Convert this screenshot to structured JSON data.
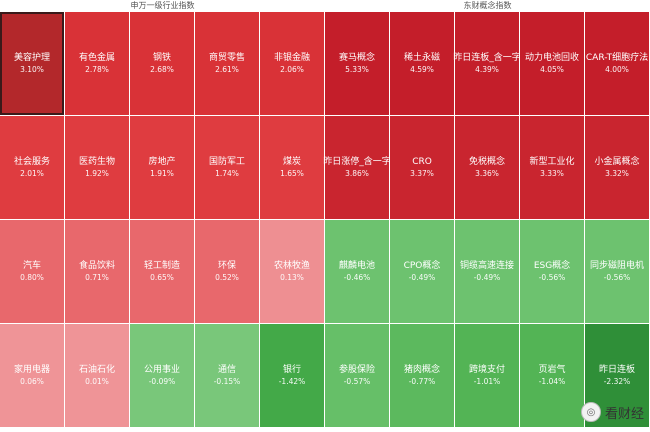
{
  "left": {
    "title": "申万一级行业指数",
    "cells": [
      {
        "name": "美容护理",
        "value": "3.10%",
        "color": "#b3282b"
      },
      {
        "name": "有色金属",
        "value": "2.78%",
        "color": "#d93237"
      },
      {
        "name": "钢铁",
        "value": "2.68%",
        "color": "#d93237"
      },
      {
        "name": "商贸零售",
        "value": "2.61%",
        "color": "#d93237"
      },
      {
        "name": "非银金融",
        "value": "2.06%",
        "color": "#d93237"
      },
      {
        "name": "社会服务",
        "value": "2.01%",
        "color": "#df3c40"
      },
      {
        "name": "医药生物",
        "value": "1.92%",
        "color": "#df3c40"
      },
      {
        "name": "房地产",
        "value": "1.91%",
        "color": "#df3c40"
      },
      {
        "name": "国防军工",
        "value": "1.74%",
        "color": "#df3c40"
      },
      {
        "name": "煤炭",
        "value": "1.65%",
        "color": "#df3c40"
      },
      {
        "name": "汽车",
        "value": "0.80%",
        "color": "#e8686c"
      },
      {
        "name": "食品饮料",
        "value": "0.71%",
        "color": "#e8686c"
      },
      {
        "name": "轻工制造",
        "value": "0.65%",
        "color": "#e8686c"
      },
      {
        "name": "环保",
        "value": "0.52%",
        "color": "#e8686c"
      },
      {
        "name": "农林牧渔",
        "value": "0.13%",
        "color": "#ee8f92"
      },
      {
        "name": "家用电器",
        "value": "0.06%",
        "color": "#ef9497"
      },
      {
        "name": "石油石化",
        "value": "0.01%",
        "color": "#ef9497"
      },
      {
        "name": "公用事业",
        "value": "-0.09%",
        "color": "#79c77a"
      },
      {
        "name": "通信",
        "value": "-0.15%",
        "color": "#79c77a"
      },
      {
        "name": "银行",
        "value": "-1.42%",
        "color": "#43a948"
      }
    ]
  },
  "right": {
    "title": "东财概念指数",
    "cells": [
      {
        "name": "赛马概念",
        "value": "5.33%",
        "color": "#c41e2a"
      },
      {
        "name": "稀土永磁",
        "value": "4.59%",
        "color": "#c41e2a"
      },
      {
        "name": "昨日连板_含一字",
        "value": "4.39%",
        "color": "#c41e2a"
      },
      {
        "name": "动力电池回收",
        "value": "4.05%",
        "color": "#c41e2a"
      },
      {
        "name": "CAR-T细胞疗法",
        "value": "4.00%",
        "color": "#c41e2a"
      },
      {
        "name": "昨日涨停_含一字",
        "value": "3.86%",
        "color": "#c9252f"
      },
      {
        "name": "CRO",
        "value": "3.37%",
        "color": "#c9252f"
      },
      {
        "name": "免税概念",
        "value": "3.36%",
        "color": "#c9252f"
      },
      {
        "name": "新型工业化",
        "value": "3.33%",
        "color": "#c9252f"
      },
      {
        "name": "小金属概念",
        "value": "3.32%",
        "color": "#c9252f"
      },
      {
        "name": "麒麟电池",
        "value": "-0.46%",
        "color": "#6dc26f"
      },
      {
        "name": "CPO概念",
        "value": "-0.49%",
        "color": "#6dc26f"
      },
      {
        "name": "铜缆高速连接",
        "value": "-0.49%",
        "color": "#6dc26f"
      },
      {
        "name": "ESG概念",
        "value": "-0.56%",
        "color": "#6dc26f"
      },
      {
        "name": "同步磁阻电机",
        "value": "-0.56%",
        "color": "#6dc26f"
      },
      {
        "name": "参股保险",
        "value": "-0.57%",
        "color": "#66bf68"
      },
      {
        "name": "猪肉概念",
        "value": "-0.77%",
        "color": "#5cb95e"
      },
      {
        "name": "跨境支付",
        "value": "-1.01%",
        "color": "#53b455"
      },
      {
        "name": "页岩气",
        "value": "-1.04%",
        "color": "#53b455"
      },
      {
        "name": "昨日连板",
        "value": "-2.32%",
        "color": "#2f8f38"
      }
    ]
  },
  "watermark": {
    "text": "看财经",
    "icon": "camera-lens-icon"
  }
}
